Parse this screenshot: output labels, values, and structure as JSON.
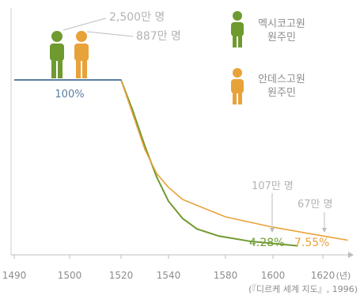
{
  "chart_data": {
    "type": "line",
    "title": "",
    "xlabel": "(년)",
    "ylabel": "",
    "xlim": [
      1490,
      1630
    ],
    "ylim": [
      0,
      100
    ],
    "x_ticks": [
      1490,
      1500,
      1520,
      1540,
      1580,
      1600,
      1620
    ],
    "series": [
      {
        "name": "멕시코고원 원주민",
        "color": "#6f9a2f",
        "points": [
          [
            1490,
            100
          ],
          [
            1520,
            100
          ],
          [
            1525,
            82
          ],
          [
            1530,
            62
          ],
          [
            1535,
            44
          ],
          [
            1540,
            30
          ],
          [
            1550,
            20
          ],
          [
            1560,
            14
          ],
          [
            1575,
            10
          ],
          [
            1590,
            7
          ],
          [
            1610,
            4.28
          ]
        ],
        "start_label": "2,500만 명",
        "end_label": "4.28%"
      },
      {
        "name": "안데스고원 원주민",
        "color": "#e8a23a",
        "points": [
          [
            1490,
            100
          ],
          [
            1520,
            100
          ],
          [
            1525,
            80
          ],
          [
            1530,
            60
          ],
          [
            1535,
            46
          ],
          [
            1540,
            38
          ],
          [
            1550,
            31
          ],
          [
            1565,
            26
          ],
          [
            1580,
            21
          ],
          [
            1600,
            15
          ],
          [
            1620,
            10
          ],
          [
            1630,
            7.55
          ]
        ],
        "start_label": "887만 명",
        "end_label": "7.55%"
      }
    ],
    "baseline_label": "100%",
    "annotations": [
      "107만 명",
      "67만 명"
    ],
    "source": "(『디르케 세계 지도』, 1996)"
  }
}
